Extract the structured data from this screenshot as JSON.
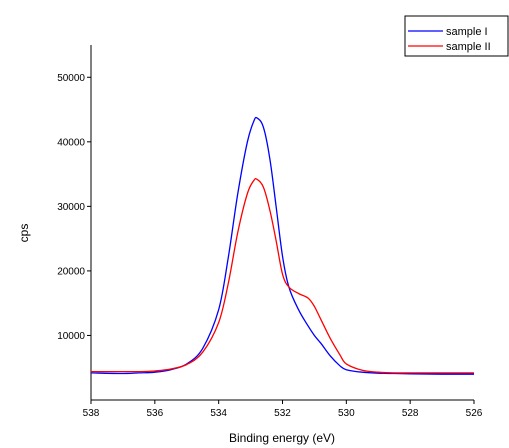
{
  "chart_data": {
    "type": "line",
    "title": "",
    "xlabel": "Binding energy (eV)",
    "ylabel": "cps",
    "xlim": [
      538,
      526
    ],
    "x_reversed": true,
    "ylim": [
      0,
      55000
    ],
    "x_ticks": [
      538,
      536,
      534,
      532,
      530,
      528,
      526
    ],
    "y_ticks": [
      10000,
      20000,
      30000,
      40000,
      50000
    ],
    "grid": false,
    "legend_placement": "top-right",
    "series": [
      {
        "name": "sample I",
        "color": "#0000ff",
        "x": [
          538,
          537,
          536.5,
          536,
          535.5,
          535,
          534.5,
          534,
          533.7,
          533.4,
          533.1,
          532.9,
          532.8,
          532.6,
          532.4,
          532.2,
          532,
          531.8,
          531.5,
          531.2,
          531,
          530.8,
          530.5,
          530.2,
          530,
          529.5,
          529,
          528.5,
          528,
          527,
          526
        ],
        "y": [
          4200,
          4100,
          4200,
          4300,
          4700,
          5600,
          8000,
          14000,
          22000,
          32000,
          40000,
          43200,
          43700,
          42300,
          37500,
          30000,
          22300,
          17500,
          14000,
          11500,
          10000,
          8800,
          6800,
          5300,
          4700,
          4300,
          4150,
          4100,
          4050,
          4000,
          4000
        ]
      },
      {
        "name": "sample II",
        "color": "#ff0000",
        "x": [
          538,
          537,
          536.5,
          536,
          535.5,
          535,
          534.5,
          534,
          533.7,
          533.4,
          533.1,
          532.9,
          532.8,
          532.6,
          532.4,
          532.2,
          532,
          531.8,
          531.5,
          531.2,
          531,
          530.8,
          530.5,
          530.2,
          530,
          529.5,
          529,
          528.5,
          528,
          527,
          526
        ],
        "y": [
          4400,
          4400,
          4400,
          4500,
          4800,
          5500,
          7400,
          12000,
          18000,
          26000,
          32000,
          34000,
          34200,
          33000,
          29500,
          24700,
          19500,
          17500,
          16500,
          15800,
          14500,
          12500,
          9500,
          7000,
          5600,
          4600,
          4300,
          4200,
          4200,
          4200,
          4200
        ]
      }
    ]
  }
}
